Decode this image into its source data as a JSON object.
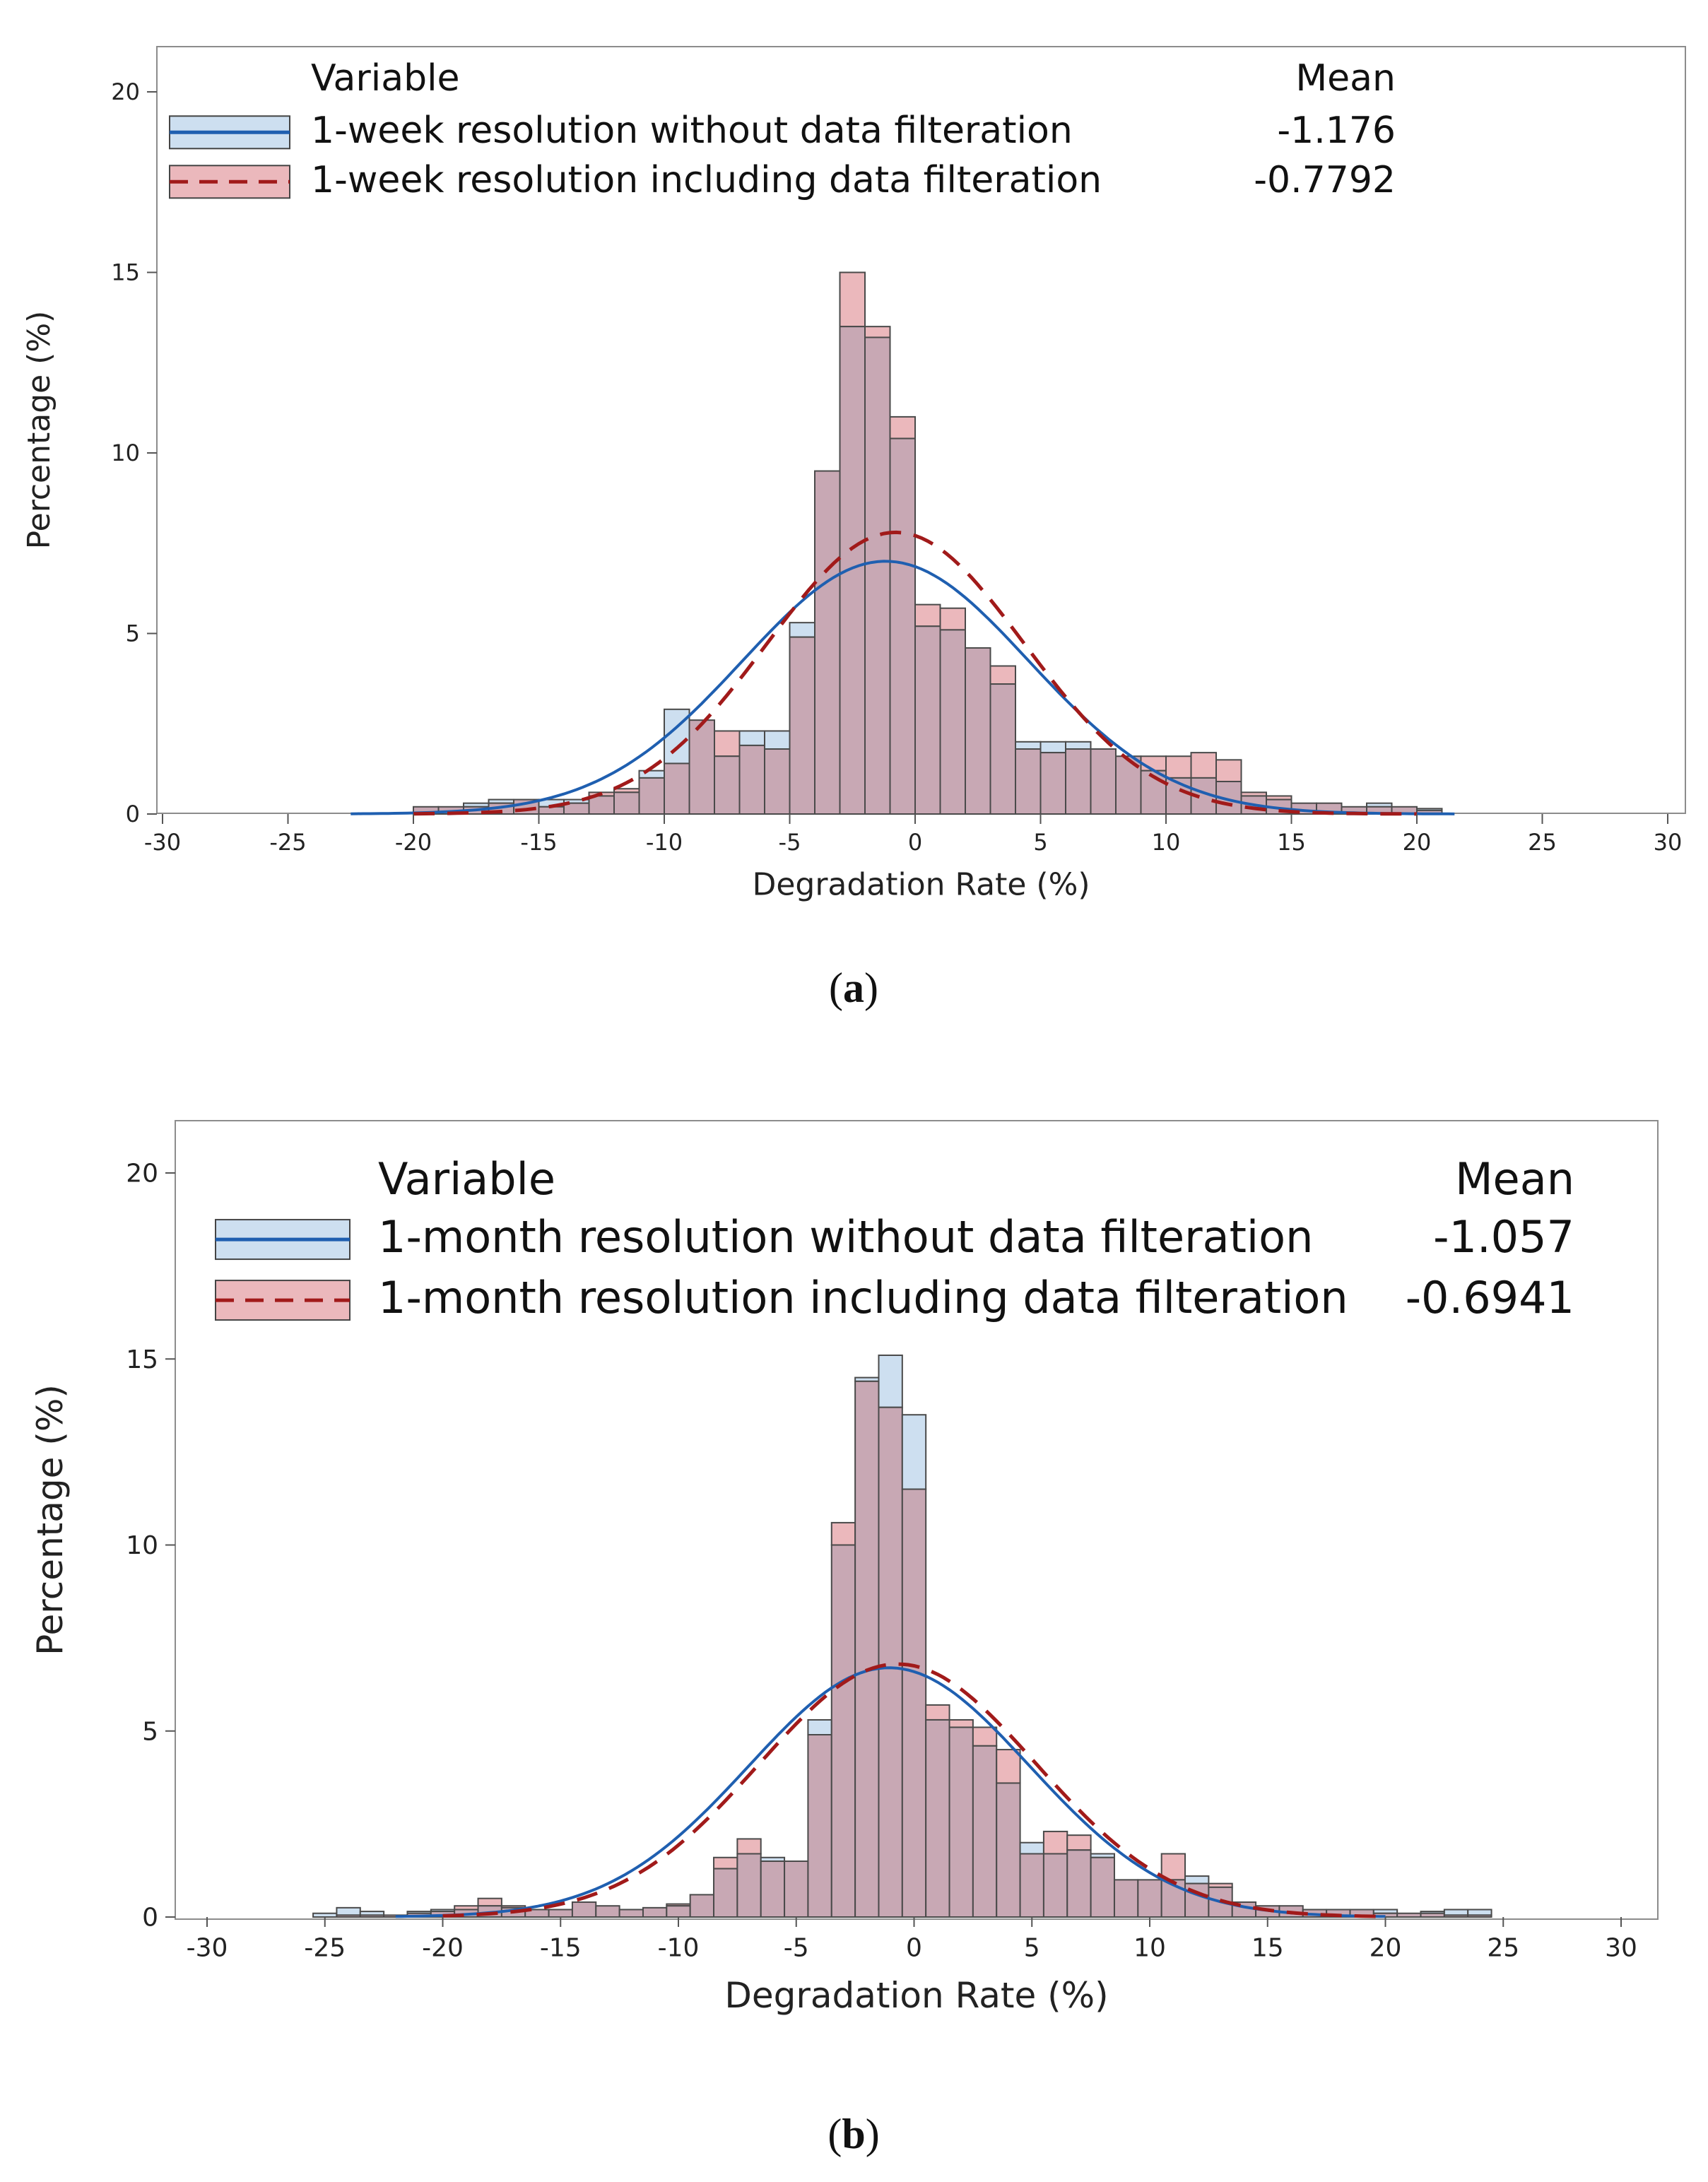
{
  "chart_data": [
    {
      "panel_label": "a",
      "type": "bar",
      "subtype": "overlaid histogram with fitted normal curves",
      "xlabel": "Degradation Rate (%)",
      "ylabel": "Percentage (%)",
      "xlim": [
        -30,
        30
      ],
      "ylim": [
        0,
        20
      ],
      "x_ticks": [
        "-30",
        "-25",
        "-20",
        "-15",
        "-10",
        "-5",
        "0",
        "5",
        "10",
        "15",
        "20",
        "25",
        "30"
      ],
      "y_ticks": [
        "0",
        "5",
        "10",
        "15",
        "20"
      ],
      "grid": false,
      "legend_position": "top-left",
      "legend": {
        "title": "Variable",
        "stat_header": "Mean",
        "entries": [
          {
            "name": "1-week resolution without data filteration",
            "mean": "-1.176",
            "fill_color": "#cddff0",
            "line_color": "#1f5fb0",
            "line_style": "solid"
          },
          {
            "name": "1-week resolution including data filteration",
            "mean": "-0.7792",
            "fill_color": "#ebb8bc",
            "line_color": "#a11a1a",
            "line_style": "dashed"
          }
        ]
      },
      "bin_width": 1,
      "bin_starts": [
        -21,
        -20,
        -19,
        -18,
        -17,
        -16,
        -15,
        -14,
        -13,
        -12,
        -11,
        -10,
        -9,
        -8,
        -7,
        -6,
        -5,
        -4,
        -3,
        -2,
        -1,
        0,
        1,
        2,
        3,
        4,
        5,
        6,
        7,
        8,
        9,
        10,
        11,
        12,
        13,
        14,
        15,
        16,
        17,
        18,
        19,
        20
      ],
      "series": [
        {
          "name": "1-week resolution without data filteration",
          "values": [
            0,
            0.2,
            0.2,
            0.3,
            0.4,
            0.4,
            0.4,
            0.4,
            0.5,
            0.6,
            1.2,
            2.9,
            2.6,
            1.6,
            2.3,
            2.3,
            5.3,
            9.5,
            13.5,
            13.2,
            10.4,
            5.2,
            5.1,
            4.6,
            3.6,
            2.0,
            2.0,
            2.0,
            1.8,
            1.6,
            1.2,
            1.0,
            1.0,
            0.9,
            0.5,
            0.4,
            0.3,
            0.3,
            0.2,
            0.3,
            0.2,
            0.15
          ]
        },
        {
          "name": "1-week resolution including data filteration",
          "values": [
            0,
            0.2,
            0.2,
            0.2,
            0.3,
            0.4,
            0.2,
            0.3,
            0.6,
            0.7,
            1.0,
            1.4,
            2.6,
            2.3,
            1.9,
            1.8,
            4.9,
            9.5,
            15.0,
            13.5,
            11.0,
            5.8,
            5.7,
            4.6,
            4.1,
            1.8,
            1.7,
            1.8,
            1.8,
            1.6,
            1.6,
            1.6,
            1.7,
            1.5,
            0.6,
            0.5,
            0.3,
            0.3,
            0.2,
            0.2,
            0.2,
            0.1
          ]
        }
      ],
      "normal_fits": [
        {
          "series": "1-week resolution without data filteration",
          "mean": -1.176,
          "peak": 7.0,
          "range": [
            -22.5,
            21.5
          ]
        },
        {
          "series": "1-week resolution including data filteration",
          "mean": -0.7792,
          "peak": 7.8,
          "range": [
            -20,
            20
          ]
        }
      ]
    },
    {
      "panel_label": "b",
      "type": "bar",
      "subtype": "overlaid histogram with fitted normal curves",
      "xlabel": "Degradation Rate (%)",
      "ylabel": "Percentage (%)",
      "xlim": [
        -30,
        30
      ],
      "ylim": [
        0,
        20
      ],
      "x_ticks": [
        "-30",
        "-25",
        "-20",
        "-15",
        "-10",
        "-5",
        "0",
        "5",
        "10",
        "15",
        "20",
        "25",
        "30"
      ],
      "y_ticks": [
        "0",
        "5",
        "10",
        "15",
        "20"
      ],
      "grid": false,
      "legend_position": "top-left",
      "legend": {
        "title": "Variable",
        "stat_header": "Mean",
        "entries": [
          {
            "name": "1-month resolution without data filteration",
            "mean": "-1.057",
            "fill_color": "#cddff0",
            "line_color": "#1f5fb0",
            "line_style": "solid"
          },
          {
            "name": "1-month resolution including data filteration",
            "mean": "-0.6941",
            "fill_color": "#ebb8bc",
            "line_color": "#a11a1a",
            "line_style": "dashed"
          }
        ]
      },
      "bin_width": 1,
      "bin_starts": [
        -25.5,
        -24.5,
        -23.5,
        -22.5,
        -21.5,
        -20.5,
        -19.5,
        -18.5,
        -17.5,
        -16.5,
        -15.5,
        -14.5,
        -13.5,
        -12.5,
        -11.5,
        -10.5,
        -9.5,
        -8.5,
        -7.5,
        -6.5,
        -5.5,
        -4.5,
        -3.5,
        -2.5,
        -1.5,
        -0.5,
        0.5,
        1.5,
        2.5,
        3.5,
        4.5,
        5.5,
        6.5,
        7.5,
        8.5,
        9.5,
        10.5,
        11.5,
        12.5,
        13.5,
        14.5,
        15.5,
        16.5,
        17.5,
        18.5,
        19.5,
        20.5,
        21.5,
        22.5,
        23.5
      ],
      "series": [
        {
          "name": "1-month resolution without data filteration",
          "values": [
            0.1,
            0.25,
            0.15,
            0.05,
            0.15,
            0.2,
            0.2,
            0.3,
            0.25,
            0.2,
            0.2,
            0.4,
            0.3,
            0.2,
            0.25,
            0.3,
            0.6,
            1.3,
            1.7,
            1.6,
            1.5,
            5.3,
            10.0,
            14.5,
            15.1,
            13.5,
            5.3,
            5.1,
            4.6,
            3.6,
            2.0,
            1.7,
            1.8,
            1.7,
            1.0,
            1.0,
            1.0,
            1.1,
            0.8,
            0.4,
            0.3,
            0.3,
            0.2,
            0.2,
            0.2,
            0.2,
            0.1,
            0.15,
            0.2,
            0.2
          ]
        },
        {
          "name": "1-month resolution including data filteration",
          "values": [
            0,
            0.05,
            0.05,
            0.05,
            0.1,
            0.15,
            0.3,
            0.5,
            0.3,
            0.2,
            0.2,
            0.4,
            0.3,
            0.2,
            0.25,
            0.35,
            0.6,
            1.6,
            2.1,
            1.5,
            1.5,
            4.9,
            10.6,
            14.4,
            13.7,
            11.5,
            5.7,
            5.3,
            5.1,
            4.5,
            1.7,
            2.3,
            2.2,
            1.6,
            1.0,
            1.0,
            1.7,
            0.9,
            0.9,
            0.4,
            0.3,
            0.3,
            0.2,
            0.2,
            0.2,
            0.1,
            0.1,
            0.1,
            0.05,
            0.05
          ]
        }
      ],
      "normal_fits": [
        {
          "series": "1-month resolution without data filteration",
          "mean": -1.057,
          "peak": 6.7,
          "range": [
            -22,
            20
          ]
        },
        {
          "series": "1-month resolution including data filteration",
          "mean": -0.6941,
          "peak": 6.8,
          "range": [
            -20,
            20
          ]
        }
      ]
    }
  ]
}
